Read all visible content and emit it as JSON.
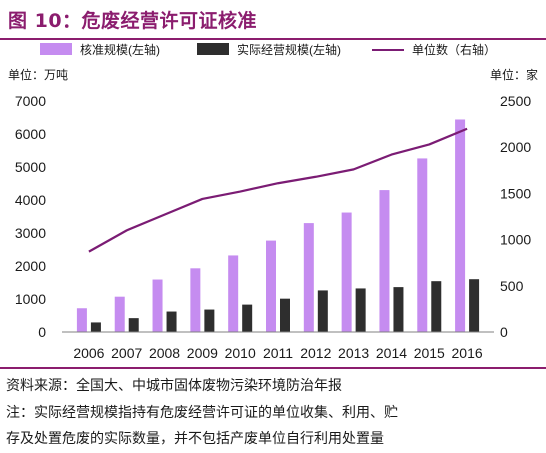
{
  "figure_title": "图 10：危废经营许可证核准",
  "left_unit": "单位：万吨",
  "right_unit": "单位：家",
  "source": "资料来源：全国大、中城市固体废物污染环境防治年报",
  "note_line1": "注：实际经营规模指持有危废经营许可证的单位收集、利用、贮",
  "note_line2": "存及处置危废的实际数量，并不包括产废单位自行利用处置量",
  "chart_data": {
    "type": "bar",
    "categories": [
      "2006",
      "2007",
      "2008",
      "2009",
      "2010",
      "2011",
      "2012",
      "2013",
      "2014",
      "2015",
      "2016"
    ],
    "series": [
      {
        "name": "核准规模(左轴)",
        "type": "bar",
        "axis": "left",
        "color": "#c58cf0",
        "values": [
          720,
          1070,
          1590,
          1930,
          2320,
          2770,
          3300,
          3620,
          4300,
          5260,
          6440
        ]
      },
      {
        "name": "实际经营规模(左轴)",
        "type": "bar",
        "axis": "left",
        "color": "#2e2e2e",
        "values": [
          290,
          420,
          620,
          680,
          830,
          1010,
          1260,
          1320,
          1360,
          1540,
          1600
        ]
      },
      {
        "name": "单位数（右轴）",
        "type": "line",
        "axis": "right",
        "color": "#7b1c74",
        "values": [
          870,
          1100,
          1270,
          1440,
          1520,
          1610,
          1680,
          1760,
          1920,
          2030,
          2200
        ]
      }
    ],
    "left_axis": {
      "ylim": [
        0,
        7000
      ],
      "ticks": [
        0,
        1000,
        2000,
        3000,
        4000,
        5000,
        6000,
        7000
      ]
    },
    "right_axis": {
      "ylim": [
        0,
        2500
      ],
      "ticks": [
        0,
        500,
        1000,
        1500,
        2000,
        2500
      ]
    },
    "legend_position": "top",
    "grid": false
  }
}
